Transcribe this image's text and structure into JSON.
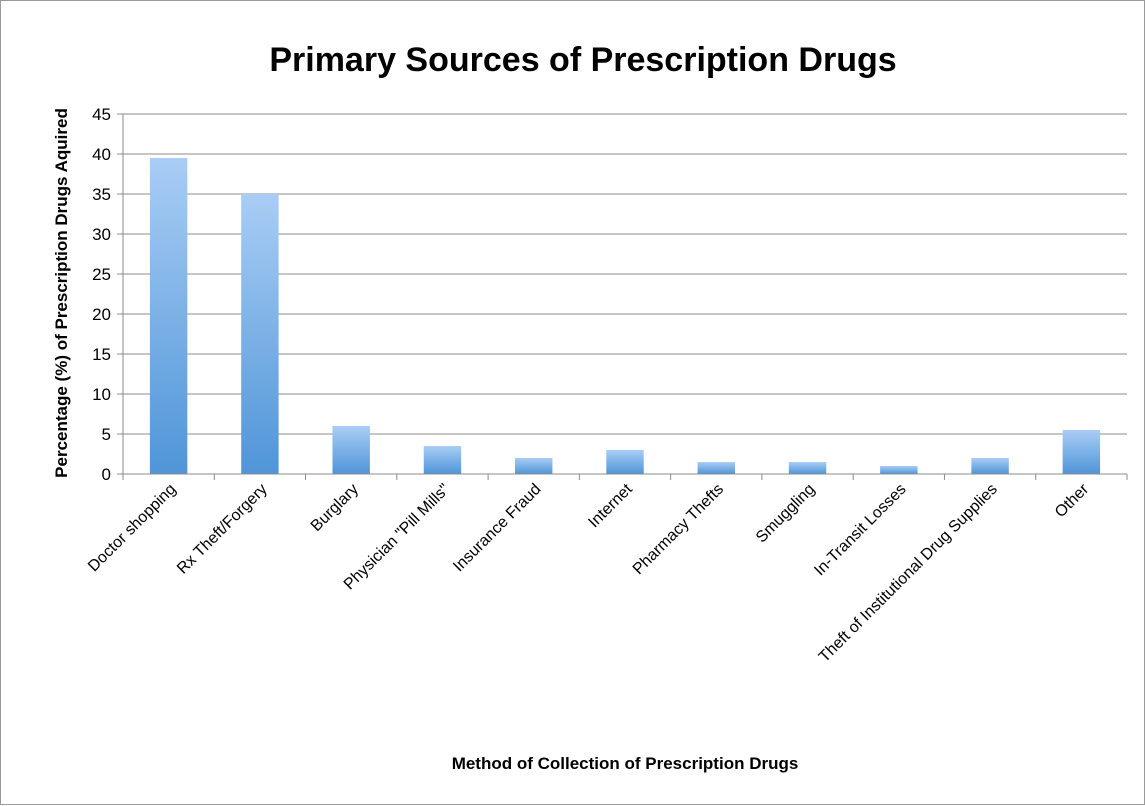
{
  "chart_data": {
    "type": "bar",
    "title": "Primary Sources of Prescription Drugs",
    "xlabel": "Method of Collection of Prescription Drugs",
    "ylabel": "Percentage (%) of Prescription Drugs Aquired",
    "categories": [
      "Doctor shopping",
      "Rx Theft/Forgery",
      "Burglary",
      "Physician \"Pill Mills\"",
      "Insurance Fraud",
      "Internet",
      "Pharmacy Thefts",
      "Smuggling",
      "In-Transit Losses",
      "Theft of Institutional Drug Supplies",
      "Other"
    ],
    "values": [
      39.5,
      35,
      6,
      3.5,
      2,
      3,
      1.5,
      1.5,
      1,
      2,
      5.5
    ],
    "ylim": [
      0,
      45
    ],
    "yticks": [
      0,
      5,
      10,
      15,
      20,
      25,
      30,
      35,
      40,
      45
    ],
    "grid": true,
    "legend": "none",
    "colors": {
      "bar_top": "#a9cdf5",
      "bar_bottom": "#4f95d8",
      "grid": "#8c8c8c",
      "axis": "#8c8c8c"
    }
  }
}
